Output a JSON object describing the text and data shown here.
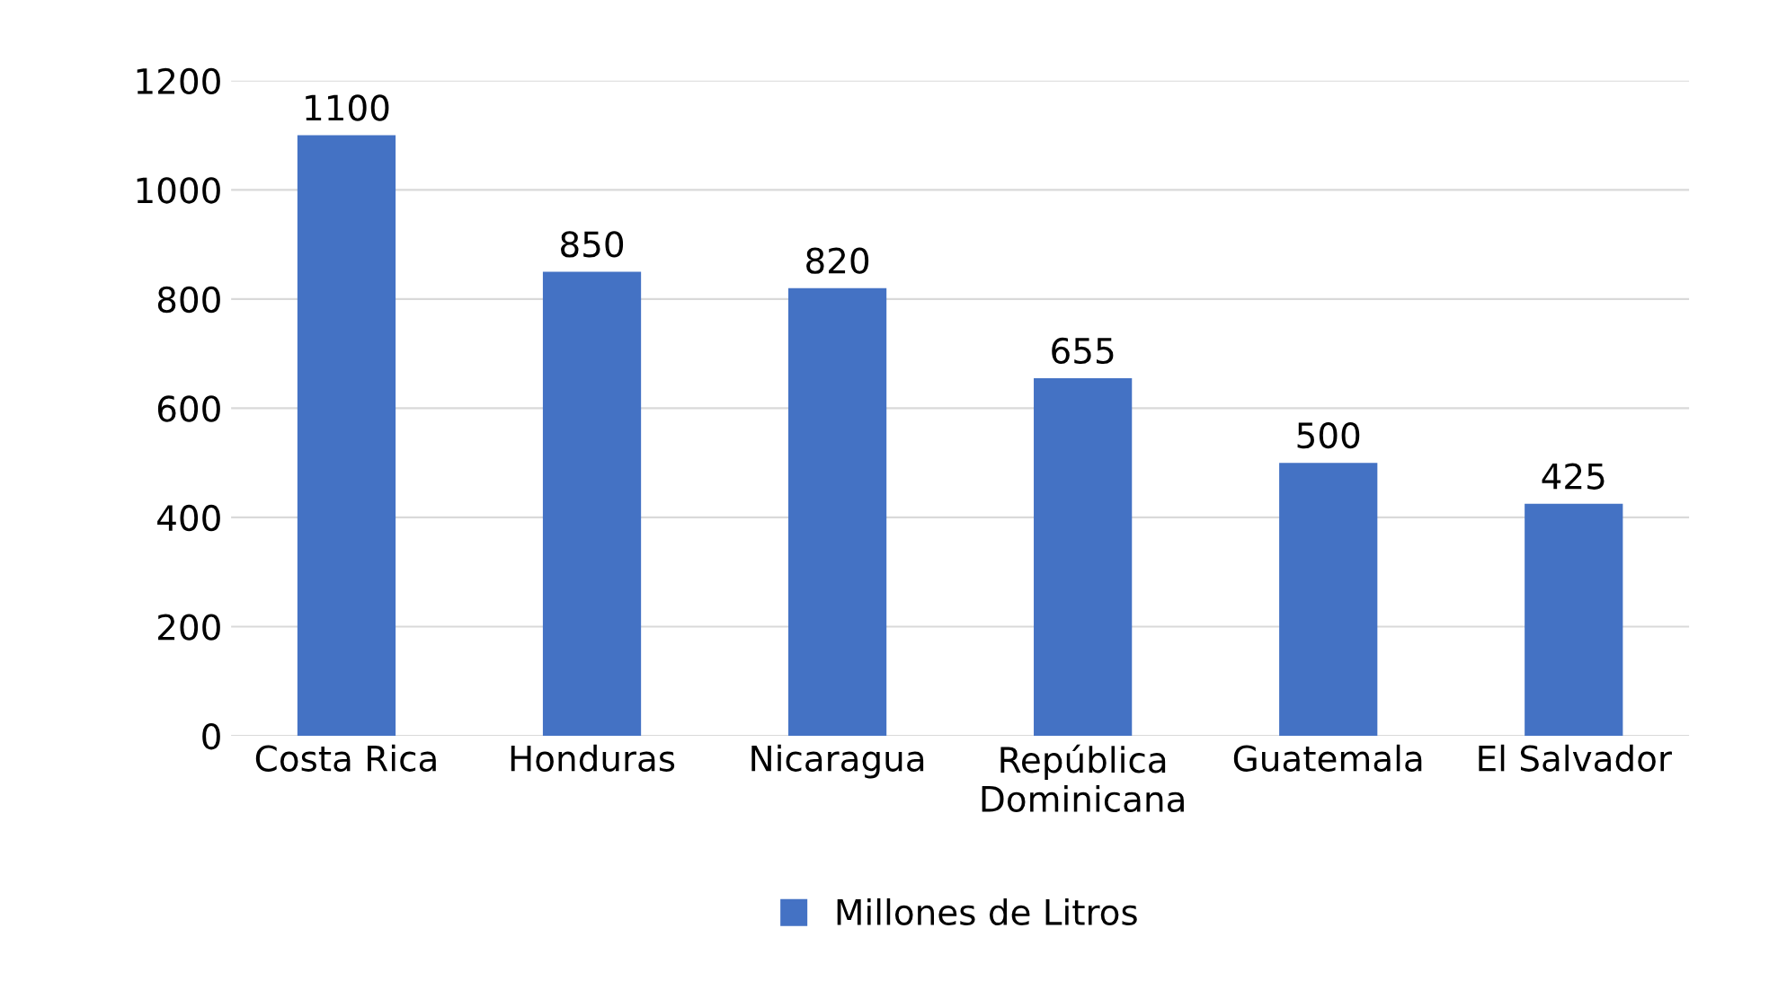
{
  "chart_data": {
    "type": "bar",
    "categories": [
      "Costa Rica",
      "Honduras",
      "Nicaragua",
      "República\nDominicana",
      "Guatemala",
      "El Salvador"
    ],
    "series": [
      {
        "name": "Millones de Litros",
        "color": "#4472c4",
        "values": [
          1100,
          850,
          820,
          655,
          500,
          425
        ]
      }
    ],
    "ylim": [
      0,
      1200
    ],
    "yticks": [
      0,
      200,
      400,
      600,
      800,
      1000,
      1200
    ],
    "grid": "y",
    "legend": "bottom",
    "data_labels": true
  }
}
